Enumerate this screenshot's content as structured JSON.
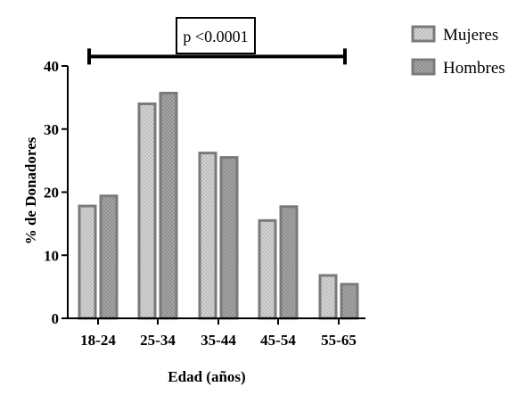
{
  "chart_data": {
    "type": "bar",
    "categories": [
      "18-24",
      "25-34",
      "35-44",
      "45-54",
      "55-65"
    ],
    "series": [
      {
        "name": "Mujeres",
        "values": [
          17.8,
          34.0,
          26.2,
          15.5,
          6.8
        ]
      },
      {
        "name": "Hombres",
        "values": [
          19.4,
          35.7,
          25.5,
          17.7,
          5.4
        ]
      }
    ],
    "xlabel": "Edad (años)",
    "ylabel": "% de Donadores",
    "ylim": [
      0,
      40
    ],
    "yticks": [
      0,
      10,
      20,
      30,
      40
    ],
    "legend_position": "top-right",
    "grid": false,
    "annotation": {
      "text": "p <0.0001",
      "bracket_value": 41.5
    },
    "colors": {
      "bar_outline": "#7a7a7a",
      "mujeres_fill_base": "#d4d4d4",
      "mujeres_fill_check": "#bdbdbd",
      "hombres_fill_base": "#a6a6a6",
      "hombres_fill_check": "#8e8e8e",
      "axis": "#000000"
    }
  }
}
